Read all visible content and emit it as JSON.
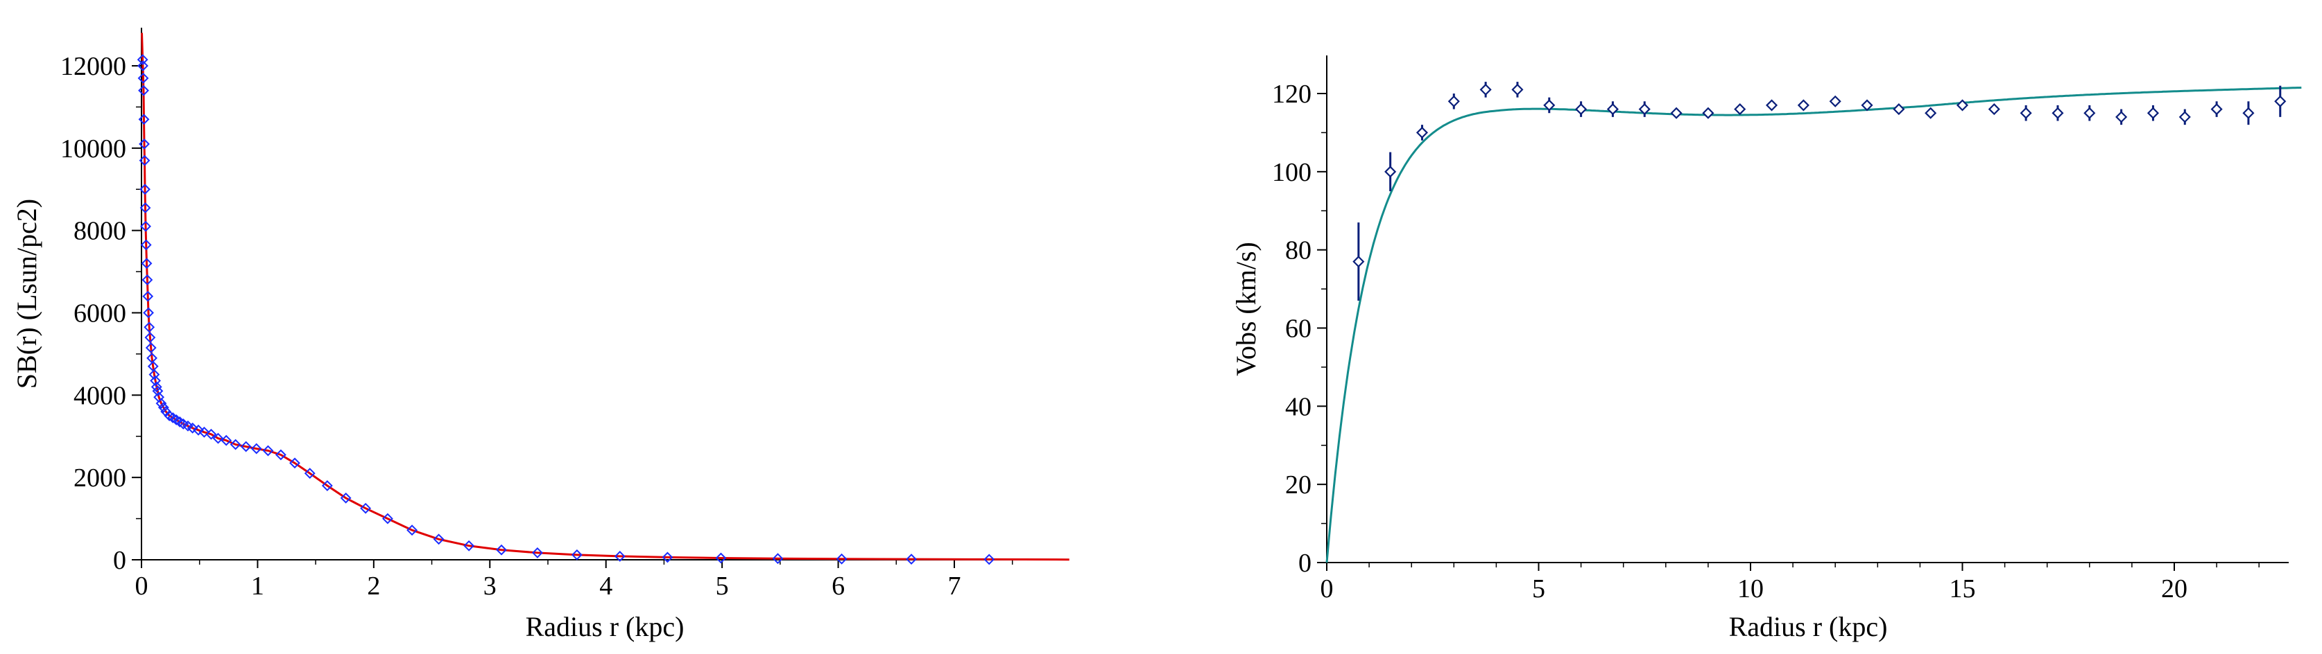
{
  "chart_data": [
    {
      "type": "line",
      "title": "",
      "xlabel": "Radius  r  (kpc)",
      "ylabel": "SB(r)    (Lsun/pc2)",
      "xlim": [
        0,
        8
      ],
      "ylim": [
        0,
        13000
      ],
      "x_ticks": [
        0,
        1,
        2,
        3,
        4,
        5,
        6,
        7
      ],
      "y_ticks": [
        0,
        2000,
        4000,
        6000,
        8000,
        10000,
        12000
      ],
      "grid": false,
      "legend": "none",
      "line_color": "#e00000",
      "marker_color": "#1a2cff",
      "series": [
        {
          "kind": "points",
          "x": [
            0.01,
            0.012,
            0.015,
            0.018,
            0.021,
            0.024,
            0.027,
            0.03,
            0.033,
            0.036,
            0.04,
            0.045,
            0.05,
            0.055,
            0.06,
            0.067,
            0.074,
            0.082,
            0.09,
            0.1,
            0.11,
            0.12,
            0.13,
            0.14,
            0.15,
            0.17,
            0.19,
            0.21,
            0.24,
            0.27,
            0.3,
            0.33,
            0.36,
            0.4,
            0.44,
            0.49,
            0.54,
            0.6,
            0.66,
            0.73,
            0.81,
            0.9,
            0.99,
            1.09,
            1.2,
            1.32,
            1.45,
            1.6,
            1.76,
            1.93,
            2.12,
            2.33,
            2.56,
            2.82,
            3.1,
            3.41,
            3.75,
            4.12,
            4.53,
            4.99,
            5.48,
            6.03,
            6.63,
            7.3
          ],
          "y": [
            12150,
            12000,
            11700,
            11400,
            10700,
            10100,
            9700,
            9000,
            8550,
            8100,
            7650,
            7200,
            6800,
            6400,
            6000,
            5650,
            5400,
            5150,
            4900,
            4700,
            4500,
            4350,
            4200,
            4100,
            3950,
            3800,
            3700,
            3600,
            3500,
            3450,
            3400,
            3350,
            3300,
            3250,
            3200,
            3150,
            3100,
            3050,
            2950,
            2900,
            2800,
            2750,
            2700,
            2650,
            2550,
            2350,
            2100,
            1800,
            1500,
            1250,
            1000,
            720,
            500,
            340,
            240,
            170,
            120,
            85,
            60,
            42,
            30,
            20,
            15,
            10
          ]
        }
      ]
    },
    {
      "type": "scatter",
      "title": "",
      "xlabel": "Radius  r  (kpc)",
      "ylabel": "Vobs  (km/s)",
      "xlim": [
        0,
        23
      ],
      "ylim": [
        0,
        130
      ],
      "x_ticks": [
        0,
        5,
        10,
        15,
        20
      ],
      "y_ticks": [
        0,
        20,
        40,
        60,
        80,
        100,
        120
      ],
      "grid": false,
      "legend": "none",
      "line_color": "#138c8c",
      "marker_color": "#0a1f7a",
      "series": [
        {
          "kind": "points_with_errors",
          "x": [
            0.75,
            1.5,
            2.25,
            3.0,
            3.75,
            4.5,
            5.25,
            6.0,
            6.75,
            7.5,
            8.25,
            9.0,
            9.75,
            10.5,
            11.25,
            12.0,
            12.75,
            13.5,
            14.25,
            15.0,
            15.75,
            16.5,
            17.25,
            18.0,
            18.75,
            19.5,
            20.25,
            21.0,
            21.75,
            22.5
          ],
          "y": [
            77,
            100,
            110,
            118,
            121,
            121,
            117,
            116,
            116,
            116,
            115,
            115,
            116,
            117,
            117,
            118,
            117,
            116,
            115,
            117,
            116,
            115,
            115,
            115,
            114,
            115,
            114,
            116,
            115,
            118
          ],
          "err": [
            10,
            5,
            2,
            2,
            2,
            2,
            2,
            2,
            2,
            2,
            1,
            1,
            1,
            1,
            1,
            1,
            1,
            1,
            1,
            1,
            1,
            2,
            2,
            2,
            2,
            2,
            2,
            2,
            3,
            4
          ]
        }
      ]
    }
  ]
}
